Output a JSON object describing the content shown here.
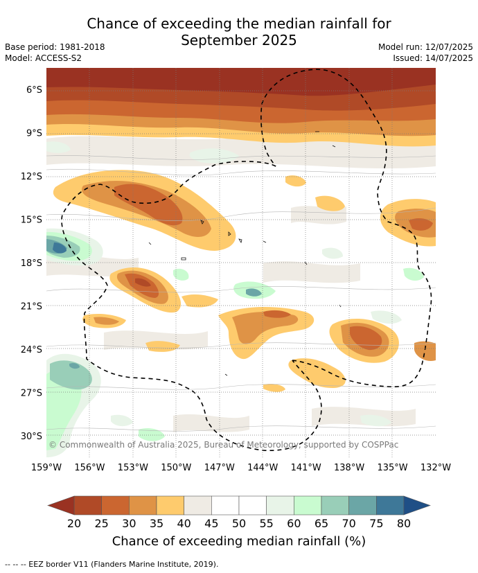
{
  "title_line1": "Chance of exceeding the median rainfall for",
  "title_line2": "September 2025",
  "base_period": "Base period: 1981-2018",
  "model": "Model: ACCESS-S2",
  "model_run": "Model run: 12/07/2025",
  "issued": "Issued: 14/07/2025",
  "copyright": "© Commonwealth of Australia 2025, Bureau of Meteorology, supported by COSPPac",
  "map": {
    "lon_range": [
      -159,
      -132
    ],
    "lat_range": [
      -31.5,
      -4.5
    ],
    "lat_ticks": [
      {
        "value": -6,
        "label": "6°S"
      },
      {
        "value": -9,
        "label": "9°S"
      },
      {
        "value": -12,
        "label": "12°S"
      },
      {
        "value": -15,
        "label": "15°S"
      },
      {
        "value": -18,
        "label": "18°S"
      },
      {
        "value": -21,
        "label": "21°S"
      },
      {
        "value": -24,
        "label": "24°S"
      },
      {
        "value": -27,
        "label": "27°S"
      },
      {
        "value": -30,
        "label": "30°S"
      }
    ],
    "lon_ticks": [
      {
        "value": -159,
        "label": "159°W"
      },
      {
        "value": -156,
        "label": "156°W"
      },
      {
        "value": -153,
        "label": "153°W"
      },
      {
        "value": -150,
        "label": "150°W"
      },
      {
        "value": -147,
        "label": "147°W"
      },
      {
        "value": -144,
        "label": "144°W"
      },
      {
        "value": -141,
        "label": "141°W"
      },
      {
        "value": -138,
        "label": "138°W"
      },
      {
        "value": -135,
        "label": "135°W"
      },
      {
        "value": -132,
        "label": "132°W"
      }
    ],
    "grid": true
  },
  "colorbar": {
    "title": "Chance of exceeding median rainfall (%)",
    "ticks": [
      "20",
      "25",
      "30",
      "35",
      "40",
      "45",
      "50",
      "55",
      "60",
      "65",
      "70",
      "75",
      "80"
    ],
    "low_color": "#9a3222",
    "high_color": "#1f4f86",
    "colors": [
      "#b04a27",
      "#cb6630",
      "#df9346",
      "#fecb6d",
      "#efebe4",
      "#ffffff",
      "#ffffff",
      "#e8f4e8",
      "#c9fbd0",
      "#99ceb8",
      "#6ba6a6",
      "#3e7898"
    ]
  },
  "legend_note": "--  --  -- EEZ border V11 (Flanders Marine Institute, 2019)."
}
